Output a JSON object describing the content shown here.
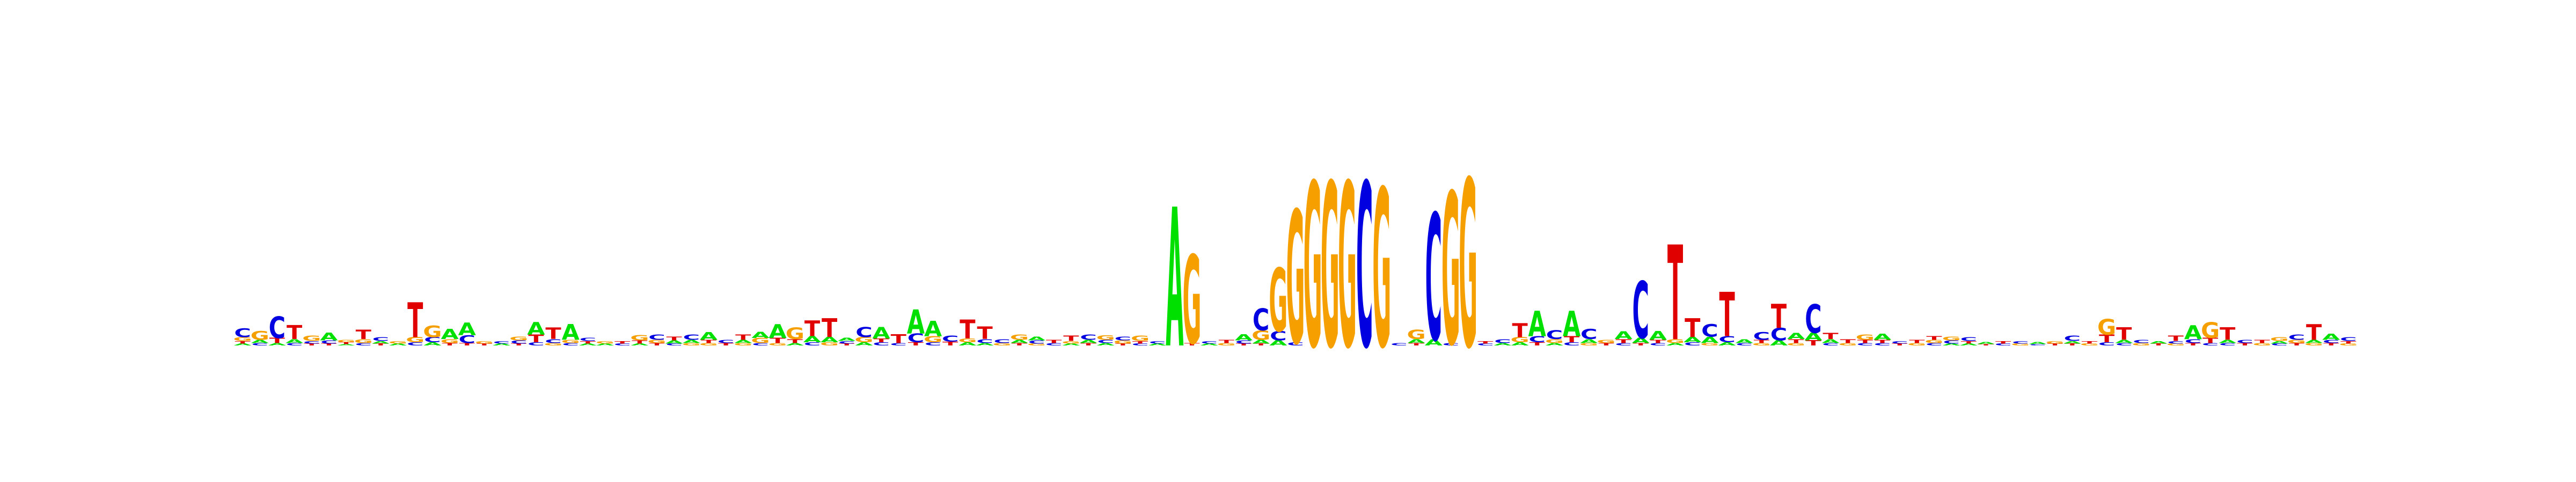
{
  "sequence_logo": {
    "colors": {
      "A": "#00e000",
      "C": "#0000e0",
      "G": "#f5a000",
      "T": "#e00000"
    },
    "positions": [
      [
        [
          "C",
          0.14
        ],
        [
          "G",
          0.06
        ],
        [
          "T",
          0.04
        ],
        [
          "A",
          0.03
        ]
      ],
      [
        [
          "G",
          0.14
        ],
        [
          "A",
          0.05
        ],
        [
          "C",
          0.04
        ]
      ],
      [
        [
          "C",
          0.34
        ],
        [
          "T",
          0.08
        ],
        [
          "A",
          0.04
        ]
      ],
      [
        [
          "T",
          0.22
        ],
        [
          "A",
          0.06
        ],
        [
          "C",
          0.04
        ]
      ],
      [
        [
          "G",
          0.08
        ],
        [
          "C",
          0.04
        ],
        [
          "T",
          0.03
        ]
      ],
      [
        [
          "A",
          0.12
        ],
        [
          "C",
          0.05
        ],
        [
          "T",
          0.03
        ]
      ],
      [
        [
          "G",
          0.04
        ],
        [
          "T",
          0.03
        ],
        [
          "A",
          0.02
        ]
      ],
      [
        [
          "T",
          0.15
        ],
        [
          "G",
          0.06
        ],
        [
          "C",
          0.04
        ]
      ],
      [
        [
          "C",
          0.06
        ],
        [
          "A",
          0.04
        ],
        [
          "T",
          0.03
        ]
      ],
      [
        [
          "G",
          0.04
        ],
        [
          "A",
          0.03
        ]
      ],
      [
        [
          "T",
          0.55
        ],
        [
          "G",
          0.08
        ],
        [
          "C",
          0.05
        ]
      ],
      [
        [
          "G",
          0.18
        ],
        [
          "C",
          0.08
        ],
        [
          "A",
          0.05
        ]
      ],
      [
        [
          "A",
          0.16
        ],
        [
          "G",
          0.06
        ],
        [
          "T",
          0.04
        ]
      ],
      [
        [
          "A",
          0.2
        ],
        [
          "C",
          0.12
        ],
        [
          "T",
          0.04
        ]
      ],
      [
        [
          "G",
          0.04
        ],
        [
          "T",
          0.03
        ]
      ],
      [
        [
          "C",
          0.04
        ],
        [
          "A",
          0.03
        ]
      ],
      [
        [
          "G",
          0.06
        ],
        [
          "C",
          0.05
        ],
        [
          "T",
          0.03
        ]
      ],
      [
        [
          "A",
          0.2
        ],
        [
          "T",
          0.12
        ],
        [
          "C",
          0.05
        ]
      ],
      [
        [
          "T",
          0.18
        ],
        [
          "C",
          0.06
        ],
        [
          "G",
          0.04
        ]
      ],
      [
        [
          "A",
          0.25
        ],
        [
          "G",
          0.05
        ],
        [
          "C",
          0.04
        ]
      ],
      [
        [
          "C",
          0.05
        ],
        [
          "T",
          0.04
        ],
        [
          "A",
          0.03
        ]
      ],
      [
        [
          "G",
          0.04
        ],
        [
          "A",
          0.03
        ]
      ],
      [
        [
          "T",
          0.04
        ],
        [
          "C",
          0.03
        ]
      ],
      [
        [
          "G",
          0.08
        ],
        [
          "T",
          0.05
        ],
        [
          "A",
          0.03
        ]
      ],
      [
        [
          "C",
          0.08
        ],
        [
          "G",
          0.05
        ],
        [
          "T",
          0.04
        ]
      ],
      [
        [
          "T",
          0.06
        ],
        [
          "A",
          0.05
        ],
        [
          "C",
          0.03
        ]
      ],
      [
        [
          "C",
          0.08
        ],
        [
          "A",
          0.05
        ],
        [
          "G",
          0.04
        ]
      ],
      [
        [
          "A",
          0.12
        ],
        [
          "T",
          0.05
        ],
        [
          "G",
          0.04
        ]
      ],
      [
        [
          "C",
          0.05
        ],
        [
          "T",
          0.04
        ]
      ],
      [
        [
          "T",
          0.08
        ],
        [
          "A",
          0.05
        ],
        [
          "G",
          0.04
        ]
      ],
      [
        [
          "A",
          0.1
        ],
        [
          "G",
          0.08
        ],
        [
          "C",
          0.04
        ]
      ],
      [
        [
          "A",
          0.22
        ],
        [
          "T",
          0.08
        ],
        [
          "G",
          0.04
        ]
      ],
      [
        [
          "G",
          0.18
        ],
        [
          "T",
          0.06
        ],
        [
          "A",
          0.04
        ]
      ],
      [
        [
          "T",
          0.25
        ],
        [
          "A",
          0.1
        ],
        [
          "C",
          0.05
        ]
      ],
      [
        [
          "T",
          0.3
        ],
        [
          "A",
          0.08
        ],
        [
          "G",
          0.05
        ]
      ],
      [
        [
          "A",
          0.05
        ],
        [
          "C",
          0.04
        ],
        [
          "T",
          0.03
        ]
      ],
      [
        [
          "C",
          0.16
        ],
        [
          "G",
          0.08
        ],
        [
          "A",
          0.05
        ]
      ],
      [
        [
          "A",
          0.18
        ],
        [
          "T",
          0.06
        ],
        [
          "C",
          0.05
        ]
      ],
      [
        [
          "T",
          0.14
        ],
        [
          "C",
          0.04
        ]
      ],
      [
        [
          "A",
          0.38
        ],
        [
          "C",
          0.14
        ],
        [
          "T",
          0.05
        ]
      ],
      [
        [
          "A",
          0.24
        ],
        [
          "G",
          0.1
        ],
        [
          "C",
          0.05
        ]
      ],
      [
        [
          "C",
          0.1
        ],
        [
          "T",
          0.06
        ]
      ],
      [
        [
          "T",
          0.3
        ],
        [
          "G",
          0.06
        ],
        [
          "A",
          0.05
        ]
      ],
      [
        [
          "T",
          0.2
        ],
        [
          "C",
          0.06
        ],
        [
          "A",
          0.04
        ]
      ],
      [
        [
          "C",
          0.06
        ],
        [
          "G",
          0.04
        ]
      ],
      [
        [
          "G",
          0.08
        ],
        [
          "A",
          0.05
        ],
        [
          "T",
          0.04
        ]
      ],
      [
        [
          "A",
          0.06
        ],
        [
          "C",
          0.05
        ],
        [
          "G",
          0.03
        ]
      ],
      [
        [
          "T",
          0.05
        ],
        [
          "C",
          0.04
        ]
      ],
      [
        [
          "T",
          0.08
        ],
        [
          "G",
          0.04
        ],
        [
          "A",
          0.03
        ]
      ],
      [
        [
          "C",
          0.08
        ],
        [
          "A",
          0.05
        ],
        [
          "T",
          0.04
        ]
      ],
      [
        [
          "G",
          0.07
        ],
        [
          "C",
          0.05
        ],
        [
          "A",
          0.04
        ]
      ],
      [
        [
          "C",
          0.06
        ],
        [
          "G",
          0.05
        ],
        [
          "T",
          0.03
        ]
      ],
      [
        [
          "G",
          0.08
        ],
        [
          "T",
          0.04
        ],
        [
          "C",
          0.03
        ]
      ],
      [
        [
          "C",
          0.04
        ],
        [
          "A",
          0.03
        ]
      ],
      [
        [
          "A",
          2.2
        ]
      ],
      [
        [
          "G",
          1.4
        ],
        [
          "T",
          0.04
        ]
      ],
      [
        [
          "C",
          0.04
        ],
        [
          "A",
          0.03
        ]
      ],
      [
        [
          "T",
          0.05
        ],
        [
          "G",
          0.04
        ]
      ],
      [
        [
          "A",
          0.1
        ],
        [
          "C",
          0.05
        ],
        [
          "T",
          0.03
        ]
      ],
      [
        [
          "C",
          0.35
        ],
        [
          "G",
          0.15
        ],
        [
          "A",
          0.06
        ],
        [
          "T",
          0.03
        ]
      ],
      [
        [
          "G",
          1.0
        ],
        [
          "C",
          0.15
        ],
        [
          "A",
          0.08
        ]
      ],
      [
        [
          "G",
          2.1
        ],
        [
          "C",
          0.05
        ]
      ],
      [
        [
          "G",
          2.6
        ]
      ],
      [
        [
          "G",
          2.6
        ]
      ],
      [
        [
          "G",
          2.6
        ]
      ],
      [
        [
          "C",
          2.6
        ]
      ],
      [
        [
          "G",
          2.5
        ]
      ],
      [
        [
          "C",
          0.04
        ]
      ],
      [
        [
          "G",
          0.15
        ],
        [
          "A",
          0.06
        ],
        [
          "T",
          0.04
        ]
      ],
      [
        [
          "C",
          2.0
        ],
        [
          "A",
          0.1
        ]
      ],
      [
        [
          "G",
          2.4
        ],
        [
          "C",
          0.04
        ]
      ],
      [
        [
          "G",
          2.65
        ]
      ],
      [
        [
          "T",
          0.04
        ],
        [
          "C",
          0.03
        ]
      ],
      [
        [
          "C",
          0.06
        ],
        [
          "A",
          0.04
        ]
      ],
      [
        [
          "T",
          0.22
        ],
        [
          "G",
          0.08
        ],
        [
          "A",
          0.05
        ]
      ],
      [
        [
          "A",
          0.4
        ],
        [
          "C",
          0.1
        ],
        [
          "T",
          0.05
        ]
      ],
      [
        [
          "C",
          0.14
        ],
        [
          "G",
          0.06
        ],
        [
          "A",
          0.04
        ]
      ],
      [
        [
          "A",
          0.4
        ],
        [
          "T",
          0.1
        ],
        [
          "C",
          0.05
        ]
      ],
      [
        [
          "C",
          0.16
        ],
        [
          "A",
          0.06
        ],
        [
          "G",
          0.04
        ]
      ],
      [
        [
          "G",
          0.05
        ],
        [
          "T",
          0.04
        ]
      ],
      [
        [
          "A",
          0.12
        ],
        [
          "T",
          0.06
        ],
        [
          "C",
          0.04
        ]
      ],
      [
        [
          "C",
          0.9
        ],
        [
          "A",
          0.08
        ],
        [
          "T",
          0.04
        ]
      ],
      [
        [
          "A",
          0.14
        ],
        [
          "T",
          0.05
        ],
        [
          "C",
          0.04
        ]
      ],
      [
        [
          "T",
          1.5
        ],
        [
          "G",
          0.06
        ],
        [
          "A",
          0.04
        ]
      ],
      [
        [
          "T",
          0.3
        ],
        [
          "A",
          0.08
        ],
        [
          "C",
          0.05
        ]
      ],
      [
        [
          "C",
          0.2
        ],
        [
          "A",
          0.1
        ],
        [
          "G",
          0.04
        ]
      ],
      [
        [
          "T",
          0.7
        ],
        [
          "C",
          0.1
        ],
        [
          "A",
          0.05
        ]
      ],
      [
        [
          "A",
          0.06
        ],
        [
          "C",
          0.04
        ]
      ],
      [
        [
          "C",
          0.12
        ],
        [
          "T",
          0.05
        ],
        [
          "G",
          0.04
        ]
      ],
      [
        [
          "T",
          0.38
        ],
        [
          "C",
          0.2
        ],
        [
          "A",
          0.08
        ]
      ],
      [
        [
          "A",
          0.1
        ],
        [
          "T",
          0.06
        ],
        [
          "G",
          0.04
        ]
      ],
      [
        [
          "C",
          0.45
        ],
        [
          "A",
          0.12
        ],
        [
          "T",
          0.08
        ]
      ],
      [
        [
          "T",
          0.1
        ],
        [
          "A",
          0.06
        ],
        [
          "C",
          0.04
        ]
      ],
      [
        [
          "T",
          0.06
        ],
        [
          "G",
          0.04
        ]
      ],
      [
        [
          "G",
          0.08
        ],
        [
          "T",
          0.05
        ],
        [
          "C",
          0.04
        ]
      ],
      [
        [
          "A",
          0.1
        ],
        [
          "T",
          0.05
        ],
        [
          "C",
          0.04
        ]
      ],
      [
        [
          "C",
          0.04
        ],
        [
          "T",
          0.03
        ]
      ],
      [
        [
          "T",
          0.05
        ],
        [
          "G",
          0.04
        ]
      ],
      [
        [
          "T",
          0.06
        ],
        [
          "G",
          0.05
        ],
        [
          "C",
          0.04
        ]
      ],
      [
        [
          "G",
          0.06
        ],
        [
          "C",
          0.05
        ],
        [
          "A",
          0.03
        ]
      ],
      [
        [
          "C",
          0.06
        ],
        [
          "T",
          0.04
        ],
        [
          "A",
          0.03
        ]
      ],
      [
        [
          "A",
          0.03
        ],
        [
          "T",
          0.02
        ]
      ],
      [
        [
          "T",
          0.04
        ],
        [
          "C",
          0.03
        ]
      ],
      [
        [
          "C",
          0.04
        ],
        [
          "G",
          0.03
        ]
      ],
      [
        [
          "A",
          0.03
        ],
        [
          "C",
          0.02
        ]
      ],
      [
        [
          "G",
          0.04
        ],
        [
          "T",
          0.03
        ]
      ],
      [
        [
          "C",
          0.08
        ],
        [
          "A",
          0.04
        ],
        [
          "T",
          0.03
        ]
      ],
      [
        [
          "T",
          0.04
        ],
        [
          "G",
          0.03
        ]
      ],
      [
        [
          "G",
          0.25
        ],
        [
          "T",
          0.12
        ],
        [
          "C",
          0.05
        ]
      ],
      [
        [
          "T",
          0.2
        ],
        [
          "A",
          0.05
        ],
        [
          "C",
          0.04
        ]
      ],
      [
        [
          "C",
          0.05
        ],
        [
          "G",
          0.04
        ]
      ],
      [
        [
          "A",
          0.04
        ],
        [
          "T",
          0.03
        ]
      ],
      [
        [
          "T",
          0.08
        ],
        [
          "C",
          0.04
        ],
        [
          "G",
          0.03
        ]
      ],
      [
        [
          "A",
          0.22
        ],
        [
          "C",
          0.06
        ],
        [
          "T",
          0.04
        ]
      ],
      [
        [
          "G",
          0.25
        ],
        [
          "T",
          0.08
        ],
        [
          "C",
          0.04
        ]
      ],
      [
        [
          "T",
          0.2
        ],
        [
          "A",
          0.05
        ],
        [
          "C",
          0.04
        ]
      ],
      [
        [
          "C",
          0.05
        ],
        [
          "T",
          0.04
        ]
      ],
      [
        [
          "T",
          0.05
        ],
        [
          "G",
          0.04
        ]
      ],
      [
        [
          "G",
          0.06
        ],
        [
          "A",
          0.04
        ],
        [
          "C",
          0.03
        ]
      ],
      [
        [
          "C",
          0.08
        ],
        [
          "G",
          0.05
        ],
        [
          "T",
          0.04
        ]
      ],
      [
        [
          "T",
          0.25
        ],
        [
          "A",
          0.05
        ],
        [
          "G",
          0.04
        ]
      ],
      [
        [
          "A",
          0.1
        ],
        [
          "C",
          0.05
        ],
        [
          "T",
          0.04
        ]
      ],
      [
        [
          "C",
          0.06
        ],
        [
          "T",
          0.04
        ],
        [
          "G",
          0.03
        ]
      ]
    ]
  }
}
